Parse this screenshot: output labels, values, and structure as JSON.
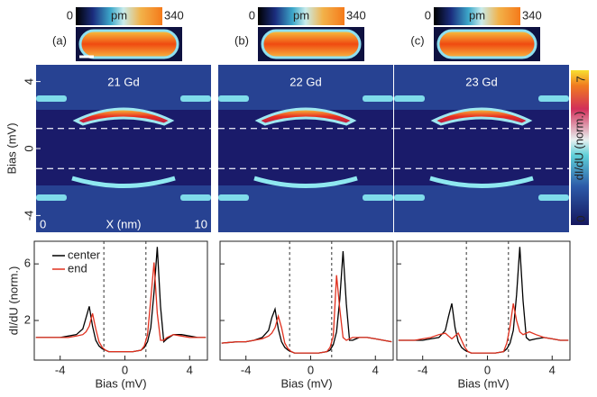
{
  "panels": [
    {
      "label": "(a)",
      "colorbar": {
        "range": [
          0,
          340
        ],
        "unit": "pm"
      },
      "map_title": "21 Gd"
    },
    {
      "label": "(b)",
      "colorbar": {
        "range": [
          0,
          340
        ],
        "unit": "pm"
      },
      "map_title": "22 Gd"
    },
    {
      "label": "(c)",
      "colorbar": {
        "range": [
          0,
          340
        ],
        "unit": "pm"
      },
      "map_title": "23 Gd"
    }
  ],
  "map": {
    "ylabel": "Bias (mV)",
    "ylim": [
      5,
      -5
    ],
    "yticks": [
      4,
      0,
      -4
    ],
    "xlabel": "X (nm)",
    "xlim": [
      0,
      10
    ],
    "colorbar": {
      "label": "dI/dU (norm.)",
      "range": [
        0,
        7
      ]
    },
    "dashed_lines": [
      1.2,
      -1.2
    ]
  },
  "chart_data": [
    {
      "type": "line",
      "xlabel": "Bias (mV)",
      "ylabel": "dI/dU (norm.)",
      "xlim": [
        -5.6,
        5.1
      ],
      "ylim": [
        -0.8,
        7.6
      ],
      "xticks": [
        -4,
        0,
        4
      ],
      "yticks": [
        2,
        6
      ],
      "ytick_labels": true,
      "legend": "upper left",
      "vlines": [
        -1.3,
        1.3
      ],
      "x": [
        -5.5,
        -4.5,
        -4,
        -3.5,
        -3,
        -2.6,
        -2.4,
        -2.2,
        -2.0,
        -1.8,
        -1.6,
        -1.4,
        -1.2,
        -1,
        -0.5,
        0,
        0.5,
        1,
        1.2,
        1.4,
        1.6,
        1.8,
        2.0,
        2.2,
        2.4,
        2.6,
        3,
        3.5,
        4,
        4.5,
        5
      ],
      "series": [
        {
          "name": "center",
          "color": "#000000",
          "values": [
            0.8,
            0.8,
            0.8,
            0.9,
            1.0,
            1.4,
            2.2,
            3.0,
            1.6,
            0.6,
            0.2,
            0.0,
            -0.1,
            -0.2,
            -0.2,
            -0.2,
            -0.2,
            -0.1,
            0.1,
            0.5,
            1.5,
            4.0,
            7.2,
            3.0,
            0.5,
            0.7,
            1.0,
            1.0,
            0.9,
            0.8,
            0.8
          ]
        },
        {
          "name": "end",
          "color": "#e0301e",
          "values": [
            0.8,
            0.8,
            0.8,
            0.8,
            0.9,
            1.0,
            1.2,
            1.6,
            2.5,
            1.4,
            0.5,
            0.1,
            -0.1,
            -0.2,
            -0.2,
            -0.2,
            -0.2,
            -0.1,
            0.2,
            1.0,
            3.5,
            6.1,
            2.5,
            0.6,
            0.6,
            0.8,
            1.0,
            0.9,
            0.8,
            0.8,
            0.8
          ]
        }
      ]
    },
    {
      "type": "line",
      "xlabel": "Bias (mV)",
      "xlim": [
        -5.6,
        5.1
      ],
      "ylim": [
        -0.8,
        7.6
      ],
      "xticks": [
        -4,
        0,
        4
      ],
      "yticks": [
        2,
        6
      ],
      "ytick_labels": false,
      "vlines": [
        -1.3,
        1.3
      ],
      "x": [
        -5.5,
        -4.5,
        -4,
        -3.5,
        -3,
        -2.6,
        -2.4,
        -2.2,
        -2.0,
        -1.8,
        -1.6,
        -1.4,
        -1.2,
        -1,
        -0.5,
        0,
        0.5,
        1,
        1.2,
        1.4,
        1.6,
        1.8,
        2.0,
        2.2,
        2.4,
        2.6,
        3,
        3.5,
        4,
        4.5,
        5
      ],
      "series": [
        {
          "color": "#000000",
          "values": [
            0.4,
            0.5,
            0.5,
            0.6,
            0.8,
            1.3,
            2.2,
            2.8,
            1.4,
            0.5,
            0.1,
            -0.1,
            -0.2,
            -0.3,
            -0.3,
            -0.3,
            -0.3,
            -0.2,
            -0.1,
            0.3,
            1.2,
            3.5,
            6.9,
            3.2,
            0.6,
            0.6,
            0.8,
            0.8,
            0.7,
            0.6,
            0.5
          ]
        },
        {
          "color": "#e0301e",
          "values": [
            0.4,
            0.5,
            0.5,
            0.6,
            0.7,
            0.9,
            1.1,
            1.5,
            2.3,
            1.5,
            0.4,
            0.0,
            -0.2,
            -0.3,
            -0.3,
            -0.3,
            -0.3,
            -0.2,
            0.1,
            0.9,
            5.2,
            2.8,
            0.8,
            0.6,
            0.7,
            0.8,
            0.8,
            0.8,
            0.7,
            0.6,
            0.5
          ]
        }
      ]
    },
    {
      "type": "line",
      "xlabel": "Bias (mV)",
      "xlim": [
        -5.6,
        5.1
      ],
      "ylim": [
        -0.8,
        7.6
      ],
      "xticks": [
        -4,
        0,
        4
      ],
      "yticks": [
        2,
        6
      ],
      "ytick_labels": false,
      "vlines": [
        -1.3,
        1.3
      ],
      "x": [
        -5.5,
        -4.5,
        -4,
        -3.5,
        -3,
        -2.6,
        -2.4,
        -2.2,
        -2.0,
        -1.8,
        -1.6,
        -1.4,
        -1.2,
        -1,
        -0.5,
        0,
        0.5,
        1,
        1.2,
        1.4,
        1.6,
        1.8,
        2.0,
        2.2,
        2.4,
        2.6,
        3,
        3.5,
        4,
        4.5,
        5
      ],
      "series": [
        {
          "color": "#000000",
          "values": [
            0.6,
            0.6,
            0.6,
            0.7,
            0.8,
            1.3,
            2.3,
            3.2,
            1.5,
            0.5,
            0.1,
            -0.1,
            -0.2,
            -0.3,
            -0.3,
            -0.3,
            -0.3,
            -0.2,
            0.0,
            0.4,
            1.3,
            3.8,
            7.2,
            3.4,
            0.8,
            0.6,
            0.7,
            0.8,
            0.7,
            0.6,
            0.6
          ]
        },
        {
          "color": "#e0301e",
          "values": [
            0.6,
            0.6,
            0.7,
            0.8,
            1.0,
            1.1,
            0.9,
            0.7,
            0.9,
            1.1,
            0.6,
            0.1,
            -0.2,
            -0.3,
            -0.3,
            -0.3,
            -0.3,
            -0.2,
            0.4,
            1.6,
            3.2,
            2.0,
            1.2,
            1.0,
            1.1,
            1.2,
            1.0,
            0.8,
            0.7,
            0.6,
            0.6
          ]
        }
      ]
    }
  ]
}
